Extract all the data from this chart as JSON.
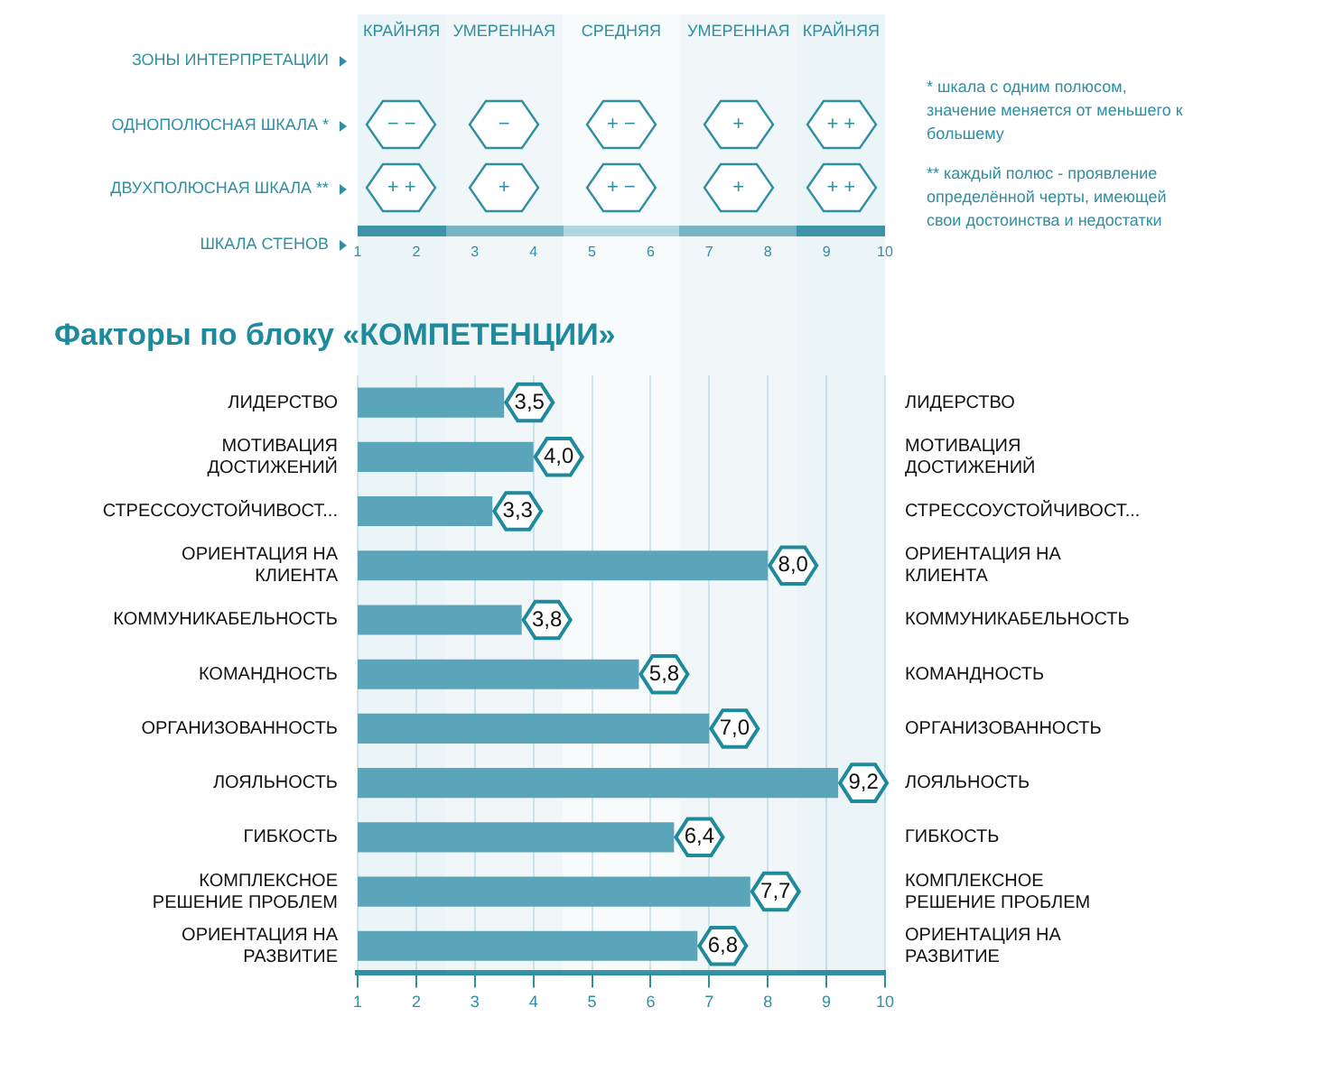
{
  "chart_data": {
    "type": "bar",
    "orientation": "horizontal",
    "title": "Факторы по блоку «КОМПЕТЕНЦИИ»",
    "categories": [
      "ЛИДЕРСТВО",
      "МОТИВАЦИЯ ДОСТИЖЕНИЙ",
      "СТРЕССОУСТОЙЧИВОСТ...",
      "ОРИЕНТАЦИЯ НА КЛИЕНТА",
      "КОММУНИКАБЕЛЬНОСТЬ",
      "КОМАНДНОСТЬ",
      "ОРГАНИЗОВАННОСТЬ",
      "ЛОЯЛЬНОСТЬ",
      "ГИБКОСТЬ",
      "КОМПЛЕКСНОЕ РЕШЕНИЕ ПРОБЛЕМ",
      "ОРИЕНТАЦИЯ НА РАЗВИТИЕ"
    ],
    "values": [
      3.5,
      4.0,
      3.3,
      8.0,
      3.8,
      5.8,
      7.0,
      9.2,
      6.4,
      7.7,
      6.8
    ],
    "value_labels": [
      "3,5",
      "4,0",
      "3,3",
      "8,0",
      "3,8",
      "5,8",
      "7,0",
      "9,2",
      "6,4",
      "7,7",
      "6,8"
    ],
    "color": "#5aa5b9",
    "xlim": [
      1,
      10
    ],
    "xticks": [
      1,
      2,
      3,
      4,
      5,
      6,
      7,
      8,
      9,
      10
    ],
    "x2lim": [
      1,
      10
    ],
    "x2ticks": [
      1,
      2,
      3,
      4,
      5,
      6,
      7,
      8,
      9,
      10
    ],
    "bands": [
      {
        "axis": "x",
        "from": 1,
        "to": 2.5,
        "label": "КРАЙНЯЯ",
        "color": "#3f93a8"
      },
      {
        "axis": "x",
        "from": 2.5,
        "to": 4.5,
        "label": "УМЕРЕННАЯ",
        "color": "#76b4c6"
      },
      {
        "axis": "x",
        "from": 4.5,
        "to": 6.5,
        "label": "СРЕДНЯЯ",
        "color": "#b0d6e2"
      },
      {
        "axis": "x",
        "from": 6.5,
        "to": 8.5,
        "label": "УМЕРЕННАЯ",
        "color": "#76b4c6"
      },
      {
        "axis": "x",
        "from": 8.5,
        "to": 10,
        "label": "КРАЙНЯЯ",
        "color": "#3f93a8"
      }
    ],
    "annotations": [
      "ЗОНЫ ИНТЕРПРЕТАЦИИ",
      "ОДНОПОЛЮСНАЯ ШКАЛА *",
      "ДВУХПОЛЮСНАЯ ШКАЛА **",
      "ШКАЛА СТЕНОВ",
      "* шкала с одним полюсом, значение меняется от меньшего к большему",
      "** каждый полюс - проявление определённой черты, имеющей свои достоинства и недостатки",
      "− −",
      "−",
      "+ −",
      "+",
      "+ +",
      "+ +",
      "+",
      "+ −",
      "+",
      "+ +"
    ],
    "grid": "x",
    "legend": false
  }
}
